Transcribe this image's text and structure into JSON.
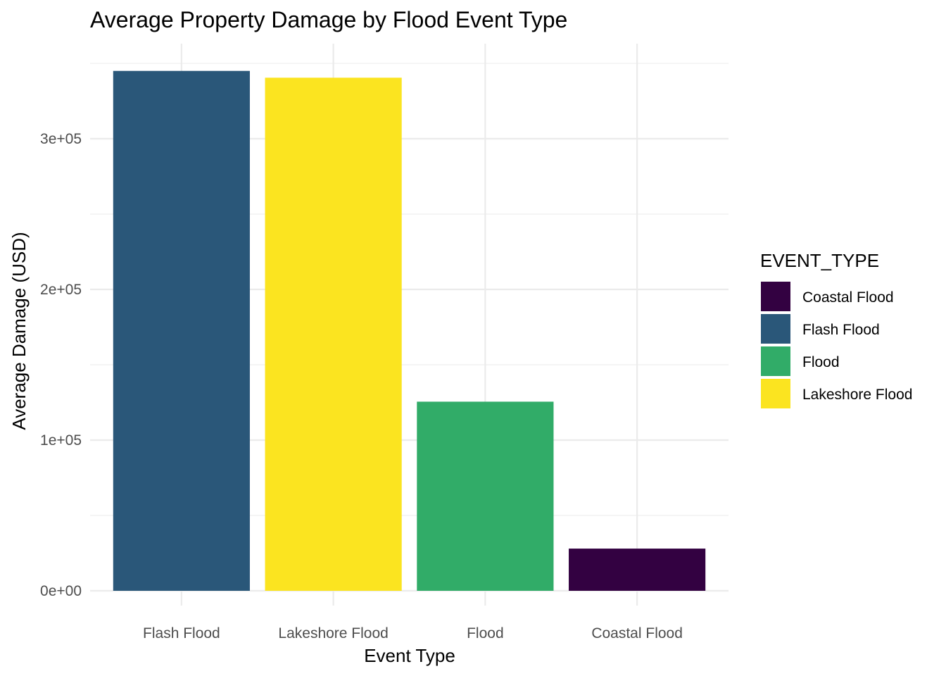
{
  "chart_data": {
    "type": "bar",
    "title": "Average Property Damage by Flood Event Type",
    "xlabel": "Event Type",
    "ylabel": "Average Damage (USD)",
    "categories": [
      "Flash Flood",
      "Lakeshore Flood",
      "Flood",
      "Coastal Flood"
    ],
    "values": [
      345000,
      340500,
      125500,
      28000
    ],
    "colors": [
      "#2a5779",
      "#fbe420",
      "#31ac68",
      "#330141"
    ],
    "ylim": [
      0,
      350000
    ],
    "yticks": [
      0,
      100000,
      200000,
      300000
    ],
    "ytick_labels": [
      "0e+00",
      "1e+05",
      "2e+05",
      "3e+05"
    ],
    "grid": true,
    "legend": {
      "title": "EVENT_TYPE",
      "position": "right",
      "entries": [
        {
          "label": "Coastal Flood",
          "color": "#330141"
        },
        {
          "label": "Flash Flood",
          "color": "#2a5779"
        },
        {
          "label": "Flood",
          "color": "#31ac68"
        },
        {
          "label": "Lakeshore Flood",
          "color": "#fbe420"
        }
      ]
    }
  }
}
